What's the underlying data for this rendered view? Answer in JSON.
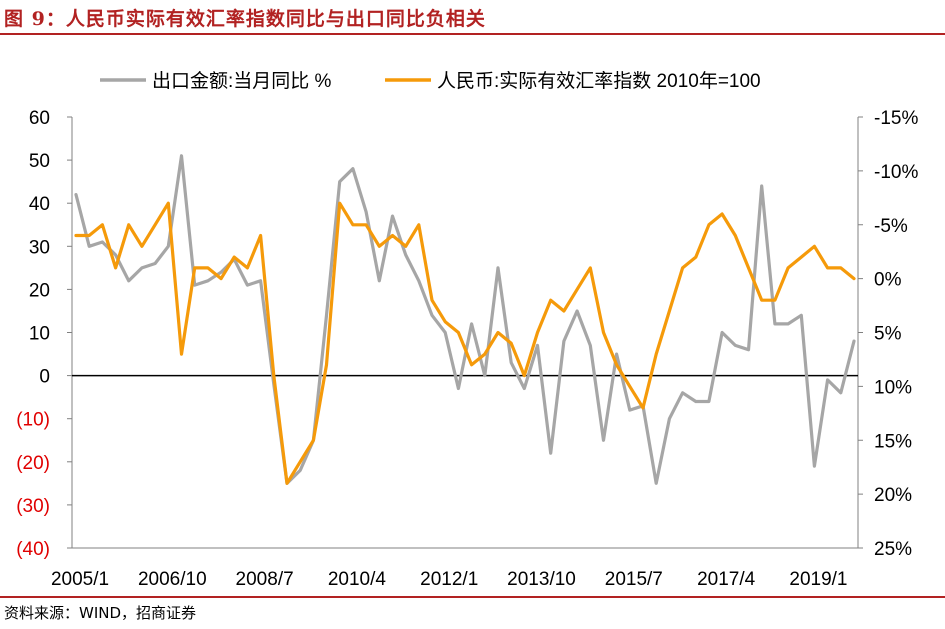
{
  "figure": {
    "title": "图 9：人民币实际有效汇率指数同比与出口同比负相关",
    "source": "资料来源：WIND，招商证券"
  },
  "chart_data": {
    "type": "line",
    "legend": {
      "placement": "top",
      "entries": [
        "出口金额:当月同比 %",
        "人民币:实际有效汇率指数 2010年=100"
      ]
    },
    "x_tick_labels": [
      "2005/1",
      "2006/10",
      "2008/7",
      "2010/4",
      "2012/1",
      "2013/10",
      "2015/7",
      "2017/4",
      "2019/1"
    ],
    "x": [
      "2005/1",
      "2005/4",
      "2005/7",
      "2005/10",
      "2006/1",
      "2006/4",
      "2006/7",
      "2006/10",
      "2007/1",
      "2007/4",
      "2007/7",
      "2007/10",
      "2008/1",
      "2008/4",
      "2008/7",
      "2008/10",
      "2009/1",
      "2009/4",
      "2009/7",
      "2009/10",
      "2010/1",
      "2010/4",
      "2010/7",
      "2010/10",
      "2011/1",
      "2011/4",
      "2011/7",
      "2011/10",
      "2012/1",
      "2012/4",
      "2012/7",
      "2012/10",
      "2013/1",
      "2013/4",
      "2013/7",
      "2013/10",
      "2014/1",
      "2014/4",
      "2014/7",
      "2014/10",
      "2015/1",
      "2015/4",
      "2015/7",
      "2015/10",
      "2016/1",
      "2016/4",
      "2016/7",
      "2016/10",
      "2017/1",
      "2017/4",
      "2017/7",
      "2017/10",
      "2018/1",
      "2018/4",
      "2018/7",
      "2018/10",
      "2019/1",
      "2019/4",
      "2019/7",
      "2019/10"
    ],
    "y_left": {
      "range": [
        -40,
        60
      ],
      "tick_labels": [
        "60",
        "50",
        "40",
        "30",
        "20",
        "10",
        "0",
        "(10)",
        "(20)",
        "(30)",
        "(40)"
      ],
      "tick_values": [
        60,
        50,
        40,
        30,
        20,
        10,
        0,
        -10,
        -20,
        -30,
        -40
      ],
      "negative_label_color": "#e00000"
    },
    "y_right": {
      "range": [
        -15,
        25
      ],
      "inverted": true,
      "tick_labels": [
        "-15%",
        "-10%",
        "-5%",
        "0%",
        "5%",
        "10%",
        "15%",
        "20%",
        "25%"
      ],
      "tick_values": [
        -15,
        -10,
        -5,
        0,
        5,
        10,
        15,
        20,
        25
      ]
    },
    "zero_line": true,
    "grid": false,
    "series": [
      {
        "name": "出口金额:当月同比 %",
        "axis": "left",
        "color": "#a6a6a6",
        "values": [
          42,
          30,
          31,
          28,
          22,
          25,
          26,
          30,
          51,
          21,
          22,
          24,
          27,
          21,
          22,
          -2,
          -25,
          -22,
          -15,
          14,
          45,
          48,
          38,
          22,
          37,
          28,
          22,
          14,
          10,
          -3,
          12,
          0,
          25,
          3,
          -3,
          7,
          -18,
          8,
          15,
          7,
          -15,
          5,
          -8,
          -7,
          -25,
          -10,
          -4,
          -6,
          -6,
          10,
          7,
          6,
          44,
          12,
          12,
          14,
          -21,
          -1,
          -4,
          8
        ],
        "note": "approx monthly-quarter values read from gridlines"
      },
      {
        "name": "人民币:实际有效汇率指数 2010年=100",
        "axis": "right",
        "color": "#f59a0a",
        "values": [
          -4,
          -4,
          -5,
          -1,
          -5,
          -3,
          -5,
          -7,
          7,
          -1,
          -1,
          0,
          -2,
          -1,
          -4,
          9,
          19,
          17,
          15,
          8,
          -7,
          -5,
          -5,
          -3,
          -4,
          -3,
          -5,
          2,
          4,
          5,
          8,
          7,
          5,
          6,
          9,
          5,
          2,
          3,
          1,
          -1,
          5,
          8,
          10,
          12,
          7,
          3,
          -1,
          -2,
          -5,
          -6,
          -4,
          -1,
          2,
          2,
          -1,
          -2,
          -3,
          -1,
          -1,
          0
        ]
      }
    ]
  }
}
